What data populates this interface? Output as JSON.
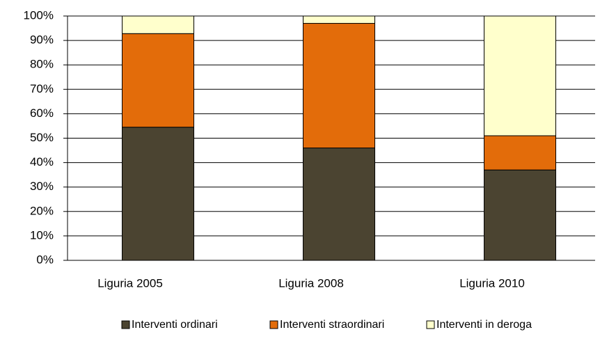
{
  "chart_data": {
    "type": "stacked_bar",
    "categories": [
      "Liguria 2005",
      "Liguria 2008",
      "Liguria 2010"
    ],
    "series": [
      {
        "name": "Interventi ordinari",
        "color": "#4b4431",
        "values": [
          54.5,
          46,
          37
        ]
      },
      {
        "name": "Interventi straordinari",
        "color": "#e36c0a",
        "values": [
          38.3,
          51,
          14
        ]
      },
      {
        "name": "Interventi in deroga",
        "color": "#ffffcc",
        "values": [
          7.2,
          3,
          49
        ]
      }
    ],
    "ylim": [
      0,
      100
    ],
    "yticks": [
      {
        "value": 0,
        "label": "0%"
      },
      {
        "value": 10,
        "label": "10%"
      },
      {
        "value": 20,
        "label": "20%"
      },
      {
        "value": 30,
        "label": "30%"
      },
      {
        "value": 40,
        "label": "40%"
      },
      {
        "value": 50,
        "label": "50%"
      },
      {
        "value": 60,
        "label": "60%"
      },
      {
        "value": 70,
        "label": "70%"
      },
      {
        "value": 80,
        "label": "80%"
      },
      {
        "value": 90,
        "label": "90%"
      },
      {
        "value": 100,
        "label": "100%"
      }
    ],
    "grid": true,
    "legend": "bottom"
  }
}
